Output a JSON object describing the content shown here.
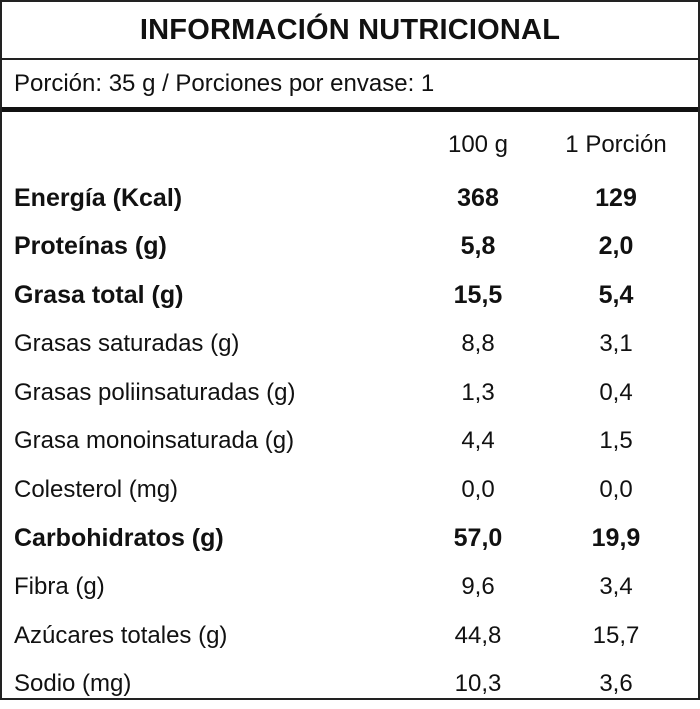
{
  "title": "INFORMACIÓN NUTRICIONAL",
  "serving": "Porción: 35 g / Porciones por envase: 1",
  "columns": {
    "per100": "100 g",
    "perPortion": "1 Porción"
  },
  "rows": [
    {
      "name": "Energía (Kcal)",
      "per100": "368",
      "perPortion": "129",
      "bold": true
    },
    {
      "name": "Proteínas (g)",
      "per100": "5,8",
      "perPortion": "2,0",
      "bold": true
    },
    {
      "name": "Grasa total (g)",
      "per100": "15,5",
      "perPortion": "5,4",
      "bold": true
    },
    {
      "name": "Grasas saturadas (g)",
      "per100": "8,8",
      "perPortion": "3,1",
      "bold": false
    },
    {
      "name": "Grasas poliinsaturadas (g)",
      "per100": "1,3",
      "perPortion": "0,4",
      "bold": false
    },
    {
      "name": "Grasa monoinsaturada (g)",
      "per100": "4,4",
      "perPortion": "1,5",
      "bold": false
    },
    {
      "name": "Colesterol (mg)",
      "per100": "0,0",
      "perPortion": "0,0",
      "bold": false
    },
    {
      "name": "Carbohidratos (g)",
      "per100": "57,0",
      "perPortion": "19,9",
      "bold": true
    },
    {
      "name": "Fibra (g)",
      "per100": "9,6",
      "perPortion": "3,4",
      "bold": false
    },
    {
      "name": "Azúcares totales (g)",
      "per100": "44,8",
      "perPortion": "15,7",
      "bold": false
    },
    {
      "name": "Sodio (mg)",
      "per100": "10,3",
      "perPortion": "3,6",
      "bold": false
    }
  ]
}
